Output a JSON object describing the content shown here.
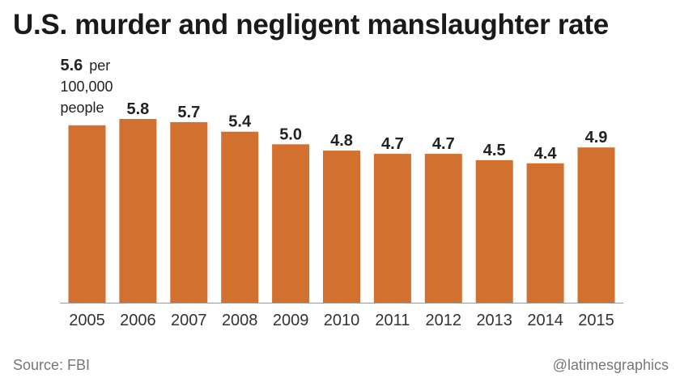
{
  "chart_data": {
    "type": "bar",
    "title": "U.S. murder and negligent manslaughter rate",
    "categories": [
      "2005",
      "2006",
      "2007",
      "2008",
      "2009",
      "2010",
      "2011",
      "2012",
      "2013",
      "2014",
      "2015"
    ],
    "values": [
      5.6,
      5.8,
      5.7,
      5.4,
      5.0,
      4.8,
      4.7,
      4.7,
      4.5,
      4.4,
      4.9
    ],
    "value_labels": [
      "5.6",
      "5.8",
      "5.7",
      "5.4",
      "5.0",
      "4.8",
      "4.7",
      "4.7",
      "4.5",
      "4.4",
      "4.9"
    ],
    "unit_label": {
      "value": "5.6",
      "line1_suffix": "per",
      "line2": "100,000",
      "line3": "people"
    },
    "ylim": [
      0,
      5.8
    ],
    "xlabel": "",
    "ylabel": "",
    "grid": false,
    "bar_color": "#d2702f",
    "baseline_color": "#9a9a9a"
  },
  "footer": {
    "source": "Source: FBI",
    "credit": "@latimesgraphics"
  }
}
